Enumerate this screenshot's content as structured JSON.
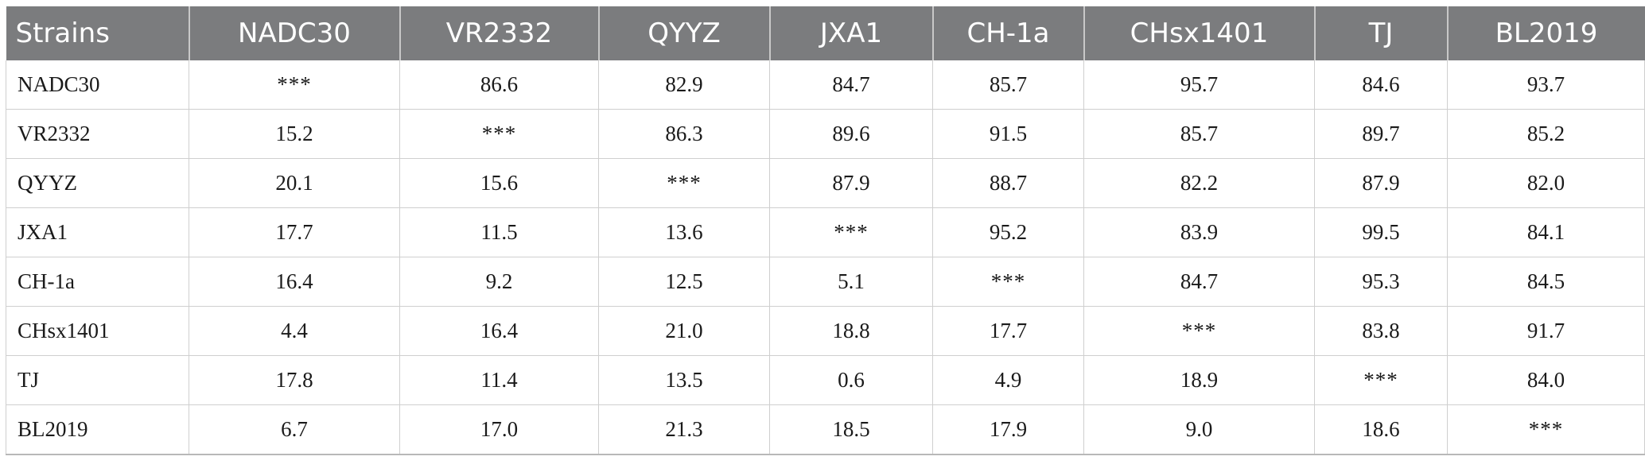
{
  "table": {
    "headers": [
      "Strains",
      "NADC30",
      "VR2332",
      "QYYZ",
      "JXA1",
      "CH-1a",
      "CHsx1401",
      "TJ",
      "BL2019"
    ],
    "rows": [
      [
        "NADC30",
        "***",
        "86.6",
        "82.9",
        "84.7",
        "85.7",
        "95.7",
        "84.6",
        "93.7"
      ],
      [
        "VR2332",
        "15.2",
        "***",
        "86.3",
        "89.6",
        "91.5",
        "85.7",
        "89.7",
        "85.2"
      ],
      [
        "QYYZ",
        "20.1",
        "15.6",
        "***",
        "87.9",
        "88.7",
        "82.2",
        "87.9",
        "82.0"
      ],
      [
        "JXA1",
        "17.7",
        "11.5",
        "13.6",
        "***",
        "95.2",
        "83.9",
        "99.5",
        "84.1"
      ],
      [
        "CH-1a",
        "16.4",
        "9.2",
        "12.5",
        "5.1",
        "***",
        "84.7",
        "95.3",
        "84.5"
      ],
      [
        "CHsx1401",
        "4.4",
        "16.4",
        "21.0",
        "18.8",
        "17.7",
        "***",
        "83.8",
        "91.7"
      ],
      [
        "TJ",
        "17.8",
        "11.4",
        "13.5",
        "0.6",
        "4.9",
        "18.9",
        "***",
        "84.0"
      ],
      [
        "BL2019",
        "6.7",
        "17.0",
        "21.3",
        "18.5",
        "17.9",
        "9.0",
        "18.6",
        "***"
      ]
    ]
  },
  "colors": {
    "header_bg": "#7b7c7e",
    "header_text": "#ffffff",
    "grid_line": "#cfcfcf"
  }
}
